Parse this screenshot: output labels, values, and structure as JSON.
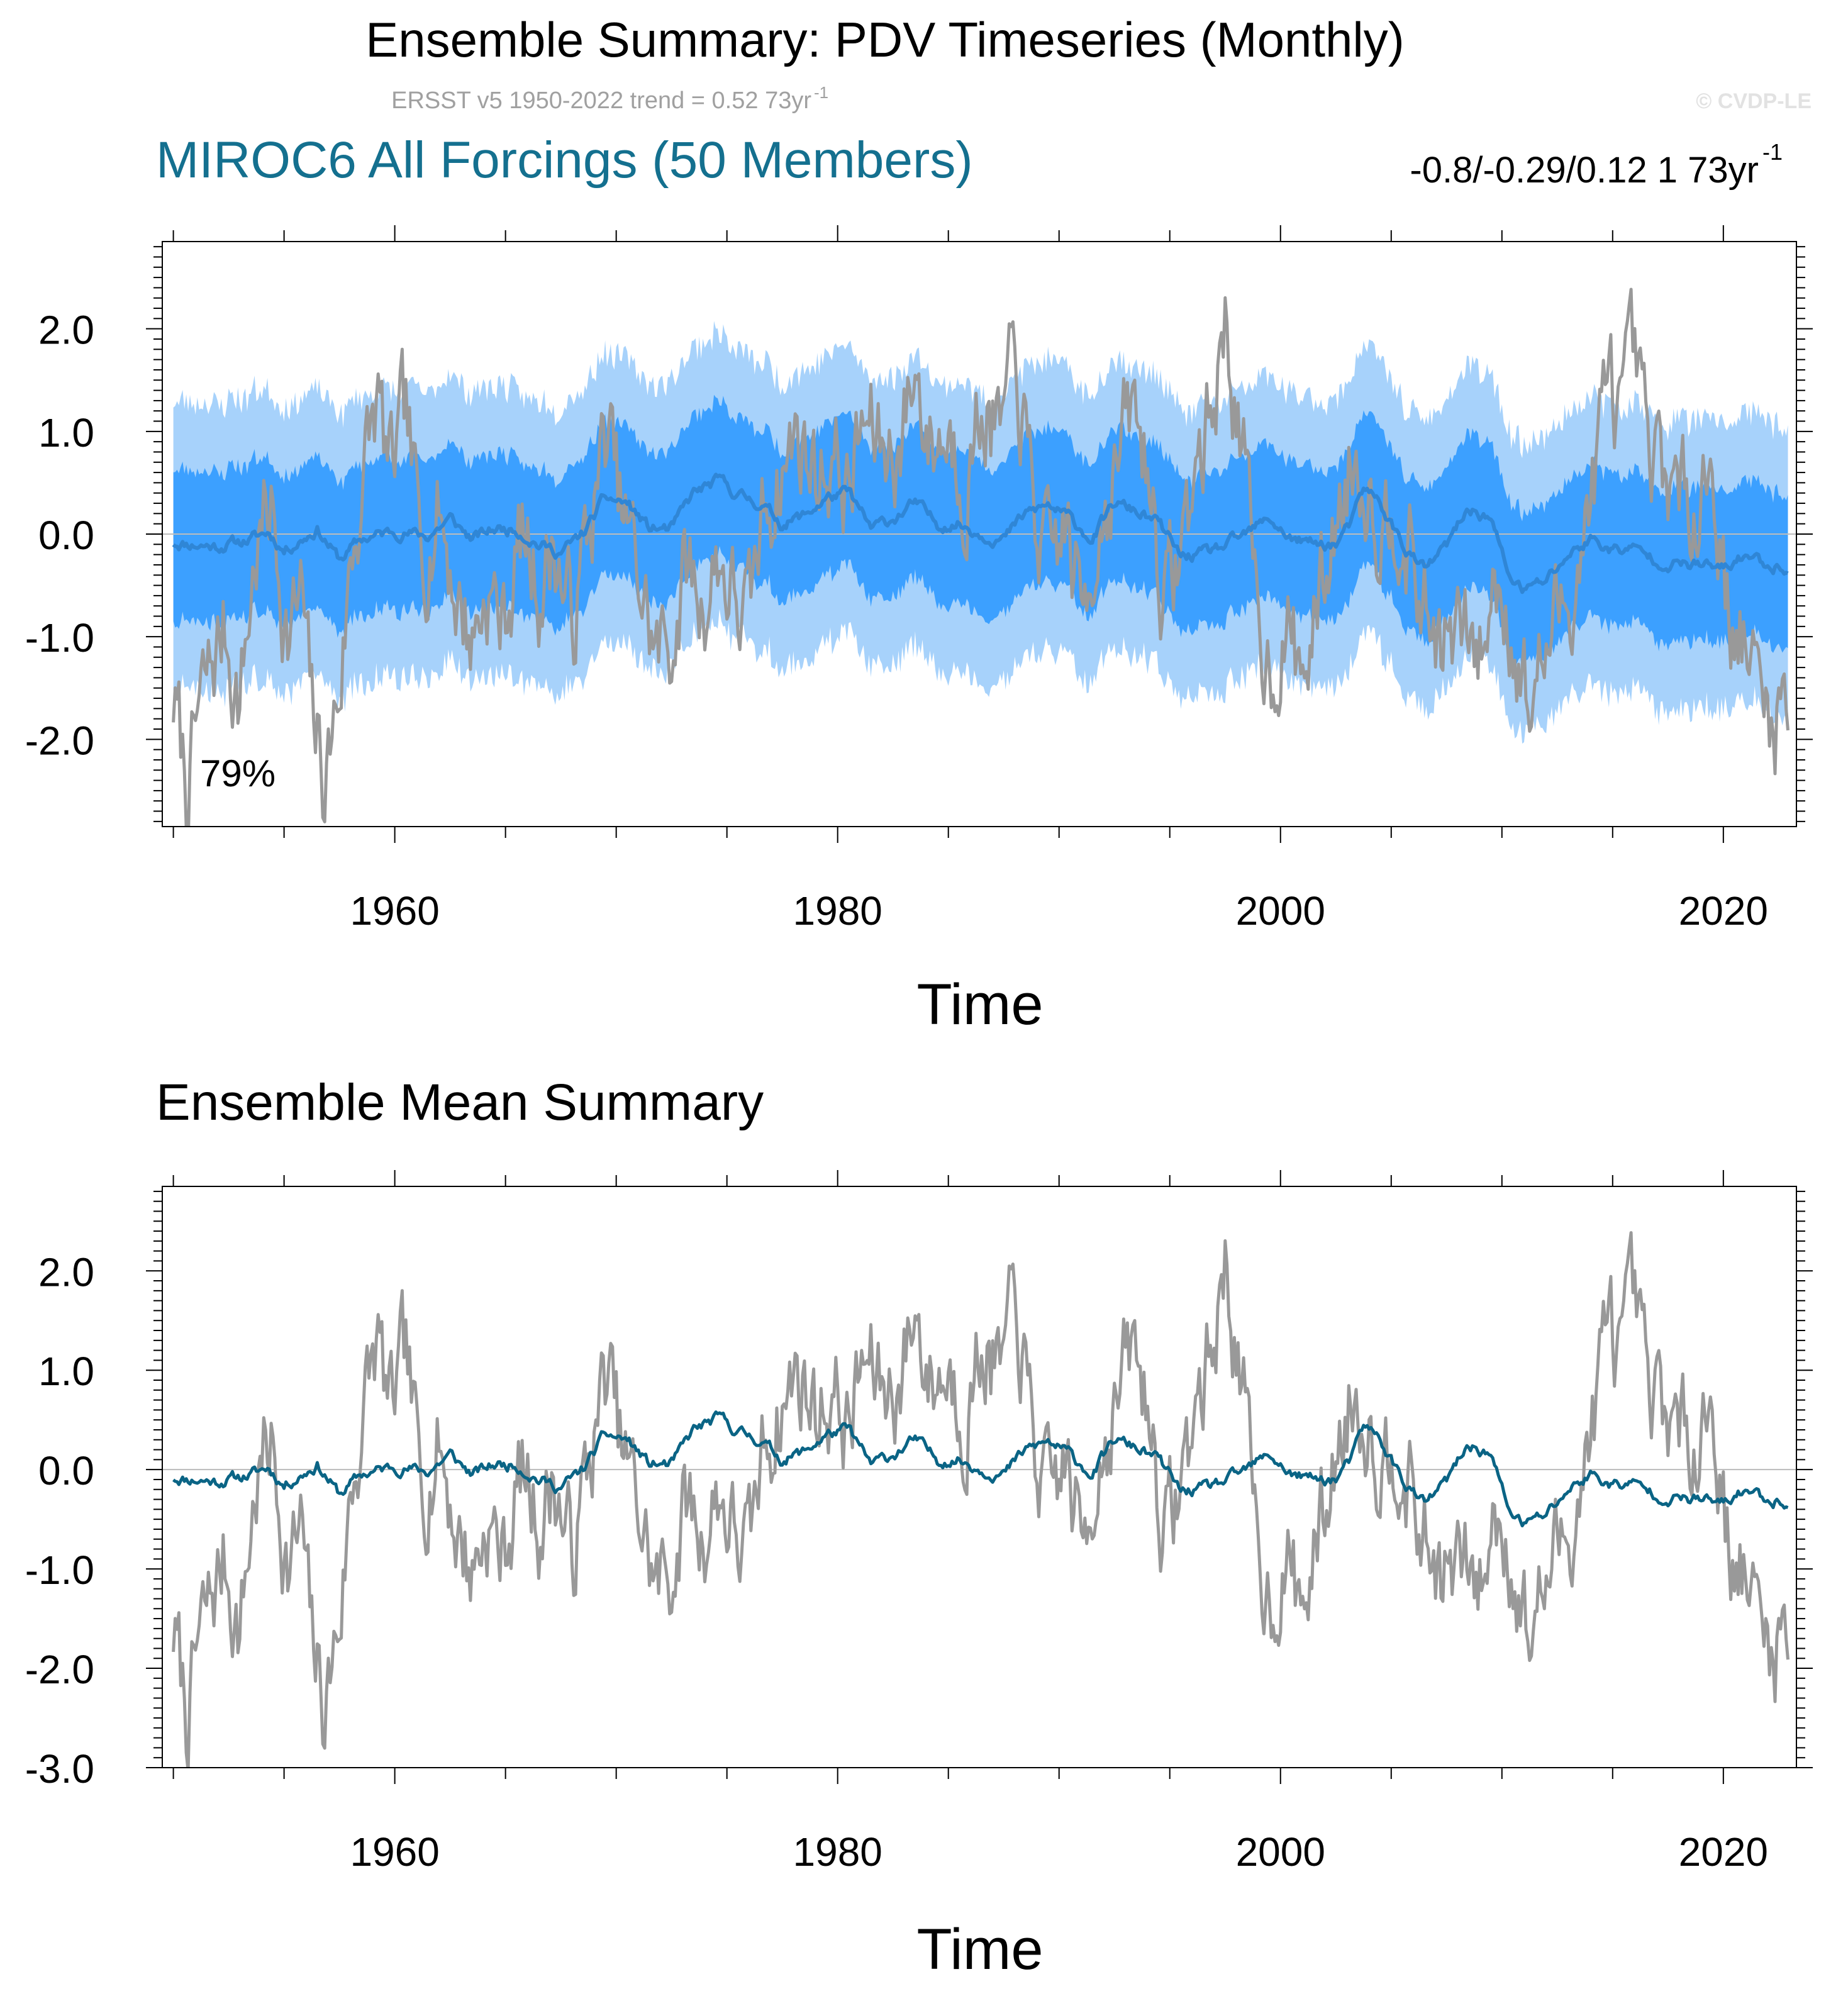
{
  "figure": {
    "title": "Ensemble Summary: PDV Timeseries (Monthly)",
    "subtitle_text": "ERSST v5 1950-2022 trend = 0.52 73yr",
    "subtitle_sup": "-1",
    "watermark": "© CVDP-LE",
    "colors": {
      "observed": "#999999",
      "ensemble_mean_top": "#2f86d6",
      "ensemble_mean_bottom": "#0a6485",
      "band_inner": "#3ca0ff",
      "band_outer": "#a7d2fb",
      "model_title": "#14708f",
      "zero_line": "#bcbcbc"
    }
  },
  "chart_data": [
    {
      "type": "line",
      "name": "ensemble-summary",
      "title": "MIROC6 All Forcings (50 Members)",
      "trend_text": "-0.8/-0.29/0.12 1 73yr",
      "trend_sup": "-1",
      "annotation": "79%",
      "xlabel": "Time",
      "ylabel": "",
      "xlim": [
        1949.5,
        2023.3
      ],
      "ylim": [
        -2.85,
        2.85
      ],
      "yticks": [
        2.0,
        1.0,
        0.0,
        -1.0,
        -2.0
      ],
      "ytick_labels": [
        "2.0",
        "1.0",
        "0.0",
        "-1.0",
        "-2.0"
      ],
      "xticks": [
        1960,
        1980,
        2000,
        2020
      ],
      "xtick_labels": [
        "1960",
        "1980",
        "2000",
        "2020"
      ],
      "series": [
        {
          "name": "ERSST v5 observed PDV",
          "start": 1950.0,
          "end": 2022.95,
          "monthly": true,
          "seed": 7
        },
        {
          "name": "Ensemble mean",
          "start": 1950.0,
          "end": 2022.95,
          "monthly": true,
          "seed": 11
        },
        {
          "name": "Ensemble 25-75% spread",
          "band": true,
          "half_width": 0.74
        },
        {
          "name": "Ensemble 10-90% spread",
          "band": true,
          "half_width": 1.4
        }
      ]
    },
    {
      "type": "line",
      "name": "ensemble-mean-summary",
      "title": "Ensemble Mean Summary",
      "xlabel": "Time",
      "ylabel": "",
      "xlim": [
        1949.5,
        2023.3
      ],
      "ylim": [
        -3.0,
        2.85
      ],
      "yticks": [
        2.0,
        1.0,
        0.0,
        -1.0,
        -2.0,
        -3.0
      ],
      "ytick_labels": [
        "2.0",
        "1.0",
        "0.0",
        "-1.0",
        "-2.0",
        "-3.0"
      ],
      "xticks": [
        1960,
        1980,
        2000,
        2020
      ],
      "xtick_labels": [
        "1960",
        "1980",
        "2000",
        "2020"
      ],
      "series": [
        {
          "name": "ERSST v5 observed PDV",
          "start": 1950.0,
          "end": 2022.95,
          "monthly": true
        },
        {
          "name": "Ensemble mean",
          "start": 1950.0,
          "end": 2022.95,
          "monthly": true
        }
      ]
    }
  ],
  "anchors": {
    "observed": [
      [
        1950.0,
        -1.6
      ],
      [
        1950.6,
        -2.5
      ],
      [
        1951.2,
        -1.7
      ],
      [
        1952.3,
        -0.9
      ],
      [
        1953.0,
        -1.6
      ],
      [
        1953.7,
        -0.2
      ],
      [
        1954.4,
        0.3
      ],
      [
        1955.2,
        -1.0
      ],
      [
        1955.8,
        -0.6
      ],
      [
        1956.2,
        -1.7
      ],
      [
        1956.8,
        -2.4
      ],
      [
        1957.5,
        -1.5
      ],
      [
        1958.0,
        -0.3
      ],
      [
        1958.6,
        0.6
      ],
      [
        1959.2,
        1.3
      ],
      [
        1959.8,
        0.5
      ],
      [
        1960.5,
        1.1
      ],
      [
        1961.2,
        -0.2
      ],
      [
        1962.0,
        0.3
      ],
      [
        1962.8,
        -0.6
      ],
      [
        1963.5,
        -1.0
      ],
      [
        1964.2,
        -0.5
      ],
      [
        1964.9,
        -0.9
      ],
      [
        1965.7,
        0.0
      ],
      [
        1966.5,
        -0.5
      ],
      [
        1967.2,
        -0.1
      ],
      [
        1968.0,
        -0.9
      ],
      [
        1968.8,
        0.1
      ],
      [
        1969.6,
        1.0
      ],
      [
        1970.2,
        0.2
      ],
      [
        1971.0,
        -0.4
      ],
      [
        1971.8,
        -1.2
      ],
      [
        1972.5,
        -1.0
      ],
      [
        1973.2,
        -0.3
      ],
      [
        1973.9,
        -0.7
      ],
      [
        1974.6,
        -0.2
      ],
      [
        1975.3,
        -0.6
      ],
      [
        1976.0,
        -0.9
      ],
      [
        1976.7,
        0.3
      ],
      [
        1977.4,
        0.6
      ],
      [
        1978.2,
        1.0
      ],
      [
        1979.0,
        0.6
      ],
      [
        1979.8,
        0.8
      ],
      [
        1980.5,
        0.4
      ],
      [
        1981.2,
        1.1
      ],
      [
        1982.0,
        0.8
      ],
      [
        1982.8,
        0.9
      ],
      [
        1983.5,
        1.6
      ],
      [
        1984.2,
        0.9
      ],
      [
        1985.0,
        1.0
      ],
      [
        1985.8,
        0.6
      ],
      [
        1986.6,
        1.3
      ],
      [
        1987.3,
        0.9
      ],
      [
        1988.1,
        1.6
      ],
      [
        1988.8,
        0.3
      ],
      [
        1989.5,
        -0.4
      ],
      [
        1990.3,
        0.1
      ],
      [
        1991.0,
        -0.8
      ],
      [
        1991.8,
        0.2
      ],
      [
        1992.5,
        0.6
      ],
      [
        1993.3,
        1.2
      ],
      [
        1994.0,
        0.7
      ],
      [
        1994.8,
        -0.7
      ],
      [
        1995.5,
        -0.1
      ],
      [
        1996.2,
        0.6
      ],
      [
        1997.0,
        1.3
      ],
      [
        1997.5,
        2.1
      ],
      [
        1998.3,
        0.8
      ],
      [
        1998.8,
        -0.6
      ],
      [
        1999.5,
        -1.3
      ],
      [
        2000.2,
        -0.9
      ],
      [
        2001.0,
        -1.4
      ],
      [
        2001.8,
        -0.6
      ],
      [
        2002.5,
        0.1
      ],
      [
        2003.2,
        0.8
      ],
      [
        2003.9,
        0.6
      ],
      [
        2004.6,
        0.1
      ],
      [
        2005.3,
        0.4
      ],
      [
        2006.1,
        -0.5
      ],
      [
        2006.8,
        -0.9
      ],
      [
        2007.5,
        -1.1
      ],
      [
        2008.2,
        -1.0
      ],
      [
        2009.0,
        -1.2
      ],
      [
        2009.8,
        -0.4
      ],
      [
        2010.5,
        -0.9
      ],
      [
        2011.2,
        -1.7
      ],
      [
        2012.0,
        -1.1
      ],
      [
        2012.8,
        -0.7
      ],
      [
        2013.5,
        -0.2
      ],
      [
        2014.2,
        0.6
      ],
      [
        2014.8,
        1.5
      ],
      [
        2015.5,
        1.1
      ],
      [
        2016.0,
        1.6
      ],
      [
        2016.7,
        0.5
      ],
      [
        2017.4,
        0.7
      ],
      [
        2018.0,
        0.2
      ],
      [
        2018.8,
        0.5
      ],
      [
        2019.5,
        0.7
      ],
      [
        2020.2,
        -0.7
      ],
      [
        2021.0,
        -1.1
      ],
      [
        2021.7,
        -1.6
      ],
      [
        2022.4,
        -1.8
      ],
      [
        2022.95,
        -1.4
      ]
    ],
    "mean": [
      [
        1950.0,
        -0.08
      ],
      [
        1952.0,
        -0.12
      ],
      [
        1953.5,
        -0.05
      ],
      [
        1954.3,
        0.02
      ],
      [
        1955.0,
        -0.16
      ],
      [
        1956.5,
        0.05
      ],
      [
        1957.5,
        -0.25
      ],
      [
        1958.5,
        -0.05
      ],
      [
        1960.0,
        0.03
      ],
      [
        1961.5,
        -0.02
      ],
      [
        1962.5,
        0.15
      ],
      [
        1963.5,
        -0.05
      ],
      [
        1964.5,
        0.05
      ],
      [
        1965.5,
        0.05
      ],
      [
        1966.5,
        -0.1
      ],
      [
        1967.5,
        -0.18
      ],
      [
        1968.5,
        0.0
      ],
      [
        1969.5,
        0.35
      ],
      [
        1970.5,
        0.3
      ],
      [
        1971.5,
        0.05
      ],
      [
        1972.5,
        0.05
      ],
      [
        1973.5,
        0.4
      ],
      [
        1974.7,
        0.52
      ],
      [
        1975.5,
        0.38
      ],
      [
        1976.5,
        0.3
      ],
      [
        1977.5,
        0.1
      ],
      [
        1978.5,
        0.18
      ],
      [
        1979.5,
        0.35
      ],
      [
        1980.5,
        0.4
      ],
      [
        1981.5,
        0.05
      ],
      [
        1982.5,
        0.15
      ],
      [
        1983.5,
        0.3
      ],
      [
        1984.5,
        0.1
      ],
      [
        1985.5,
        0.1
      ],
      [
        1986.5,
        0.0
      ],
      [
        1987.5,
        -0.05
      ],
      [
        1988.5,
        0.2
      ],
      [
        1989.5,
        0.28
      ],
      [
        1990.5,
        0.15
      ],
      [
        1991.5,
        -0.05
      ],
      [
        1992.5,
        0.3
      ],
      [
        1993.5,
        0.22
      ],
      [
        1994.5,
        0.1
      ],
      [
        1995.5,
        -0.22
      ],
      [
        1996.5,
        -0.2
      ],
      [
        1997.5,
        -0.12
      ],
      [
        1998.5,
        0.0
      ],
      [
        1999.5,
        0.15
      ],
      [
        2000.5,
        -0.05
      ],
      [
        2001.5,
        -0.1
      ],
      [
        2002.5,
        -0.1
      ],
      [
        2003.2,
        0.1
      ],
      [
        2003.8,
        0.45
      ],
      [
        2004.5,
        0.3
      ],
      [
        2005.5,
        -0.1
      ],
      [
        2006.5,
        -0.35
      ],
      [
        2007.5,
        -0.12
      ],
      [
        2008.5,
        0.25
      ],
      [
        2009.5,
        0.15
      ],
      [
        2010.3,
        -0.4
      ],
      [
        2011.0,
        -0.55
      ],
      [
        2012.0,
        -0.45
      ],
      [
        2013.0,
        -0.2
      ],
      [
        2014.0,
        -0.05
      ],
      [
        2015.0,
        -0.15
      ],
      [
        2016.0,
        -0.15
      ],
      [
        2017.0,
        -0.25
      ],
      [
        2018.0,
        -0.3
      ],
      [
        2019.0,
        -0.3
      ],
      [
        2020.0,
        -0.35
      ],
      [
        2021.0,
        -0.2
      ],
      [
        2022.0,
        -0.3
      ],
      [
        2022.95,
        -0.32
      ]
    ]
  }
}
